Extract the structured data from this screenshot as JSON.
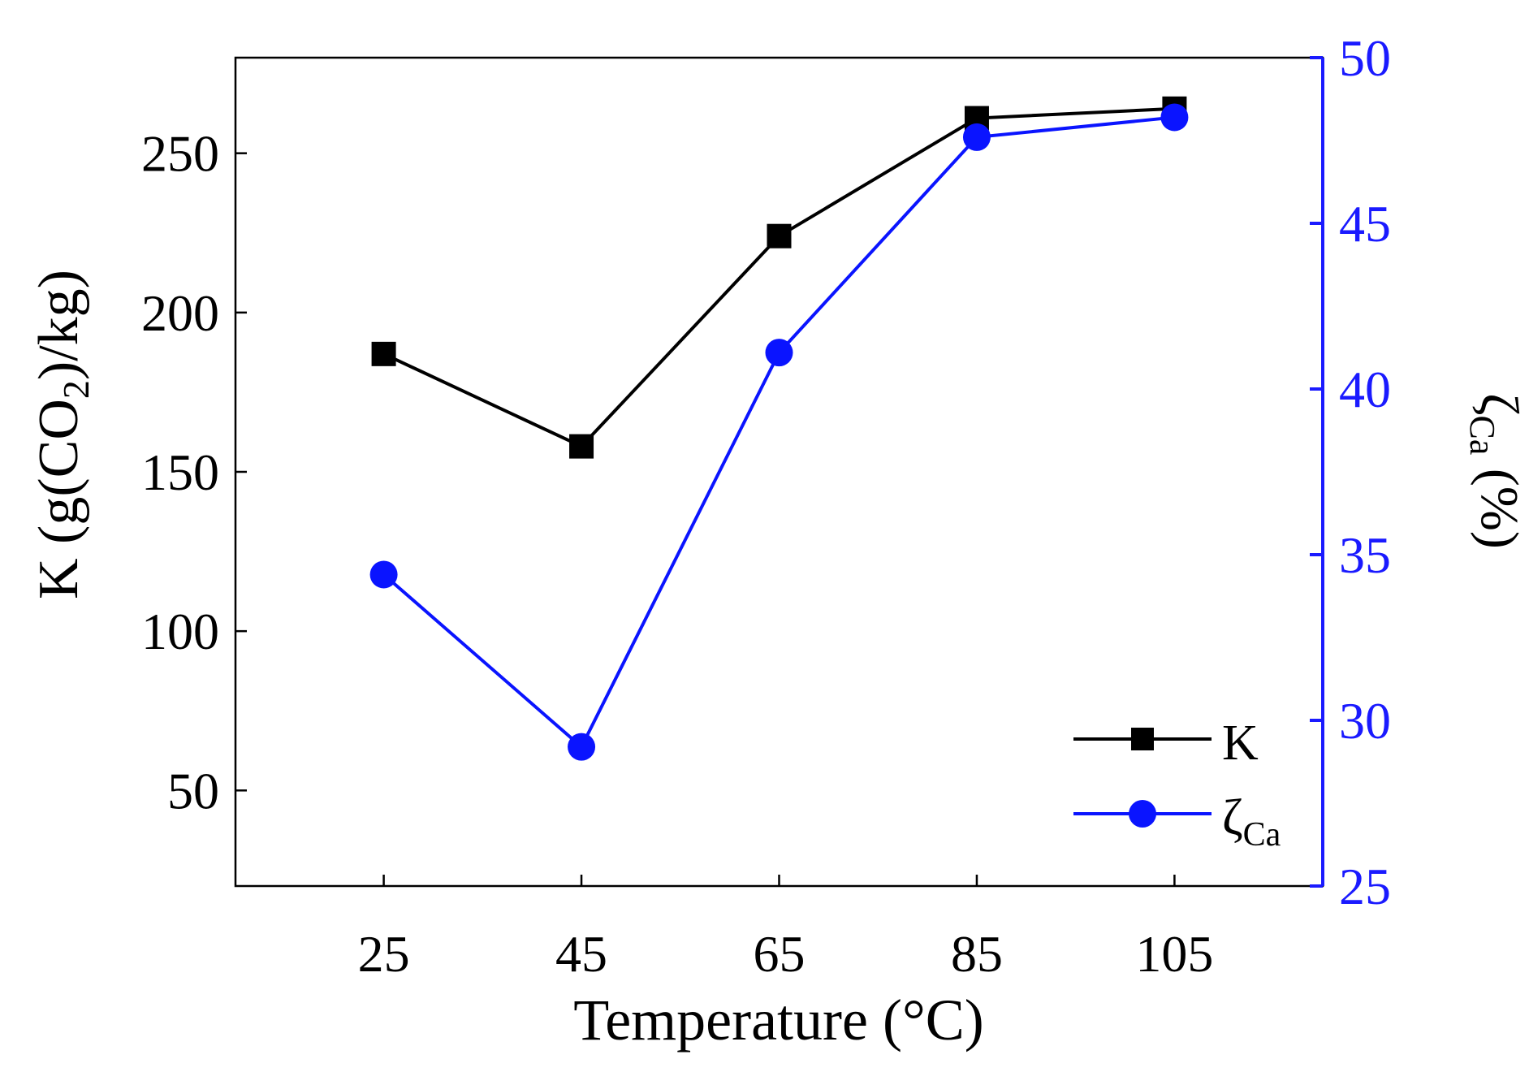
{
  "chart_data": {
    "type": "line",
    "x": [
      25,
      45,
      65,
      85,
      105
    ],
    "xlabel": "Temperature (°C)",
    "xlim": [
      10,
      120
    ],
    "xticks": [
      25,
      45,
      65,
      85,
      105
    ],
    "x_tick_labels": [
      "25",
      "45",
      "65",
      "85",
      "105"
    ],
    "left_axis": {
      "label_main": "K (g(CO",
      "label_sub": "2",
      "label_tail": ")/kg)",
      "ylim": [
        20,
        280
      ],
      "ticks": [
        50,
        100,
        150,
        200,
        250
      ],
      "tick_labels": [
        "50",
        "100",
        "150",
        "200",
        "250"
      ],
      "color": "#000000"
    },
    "right_axis": {
      "label_main": "ζ",
      "label_sub": "Ca",
      "label_tail": " (%)",
      "ylim": [
        25,
        50
      ],
      "ticks": [
        25,
        30,
        35,
        40,
        45,
        50
      ],
      "tick_labels": [
        "25",
        "30",
        "35",
        "40",
        "45",
        "50"
      ],
      "color": "#1a1aff"
    },
    "series": [
      {
        "name": "K",
        "axis": "left",
        "marker": "square",
        "color": "#000000",
        "values": [
          187,
          158,
          224,
          261,
          264
        ]
      },
      {
        "name": "ζCa",
        "name_main": "ζ",
        "name_sub": "Ca",
        "axis": "right",
        "marker": "circle",
        "color": "#0a14ff",
        "values": [
          34.4,
          29.2,
          41.1,
          47.6,
          48.2
        ]
      }
    ],
    "legend": {
      "placement": "bottom-right"
    },
    "grid": false
  }
}
